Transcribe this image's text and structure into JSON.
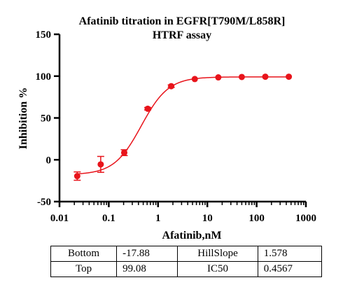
{
  "chart_data": {
    "type": "scatter",
    "title_lines": [
      "Afatinib titration in EGFR[T790M/L858R]",
      "HTRF assay"
    ],
    "xlabel": "Afatinib,nM",
    "ylabel": "Inhibition %",
    "x_scale": "log",
    "xlim": [
      0.01,
      1000
    ],
    "ylim": [
      -50,
      150
    ],
    "x_ticks": [
      0.01,
      0.1,
      1,
      10,
      100,
      1000
    ],
    "x_tick_labels": [
      "0.01",
      "0.1",
      "1",
      "10",
      "100",
      "1000"
    ],
    "y_ticks": [
      -50,
      0,
      50,
      100,
      150
    ],
    "y_tick_labels": [
      "-50",
      "0",
      "50",
      "100",
      "150"
    ],
    "grid": false,
    "color": "#e8141b",
    "points": [
      {
        "x": 0.0229,
        "y": -19.5,
        "err": 5.0
      },
      {
        "x": 0.0686,
        "y": -5.5,
        "err": 9.5
      },
      {
        "x": 0.206,
        "y": 8.5,
        "err": 3.5
      },
      {
        "x": 0.617,
        "y": 61,
        "err": 1.5
      },
      {
        "x": 1.85,
        "y": 88,
        "err": 1.5
      },
      {
        "x": 5.56,
        "y": 96.5,
        "err": 1.0
      },
      {
        "x": 16.7,
        "y": 98.5,
        "err": 0.8
      },
      {
        "x": 50.0,
        "y": 99,
        "err": 0.8
      },
      {
        "x": 150,
        "y": 99.3,
        "err": 0.8
      },
      {
        "x": 450,
        "y": 99.3,
        "err": 0.8
      }
    ],
    "fit": {
      "model": "4PL",
      "bottom": -17.88,
      "top": 99.08,
      "hillslope": 1.578,
      "ic50": 0.4567
    }
  },
  "params_table": [
    [
      "Bottom",
      "-17.88",
      "HillSlope",
      "1.578"
    ],
    [
      "Top",
      "99.08",
      "IC50",
      "0.4567"
    ]
  ]
}
